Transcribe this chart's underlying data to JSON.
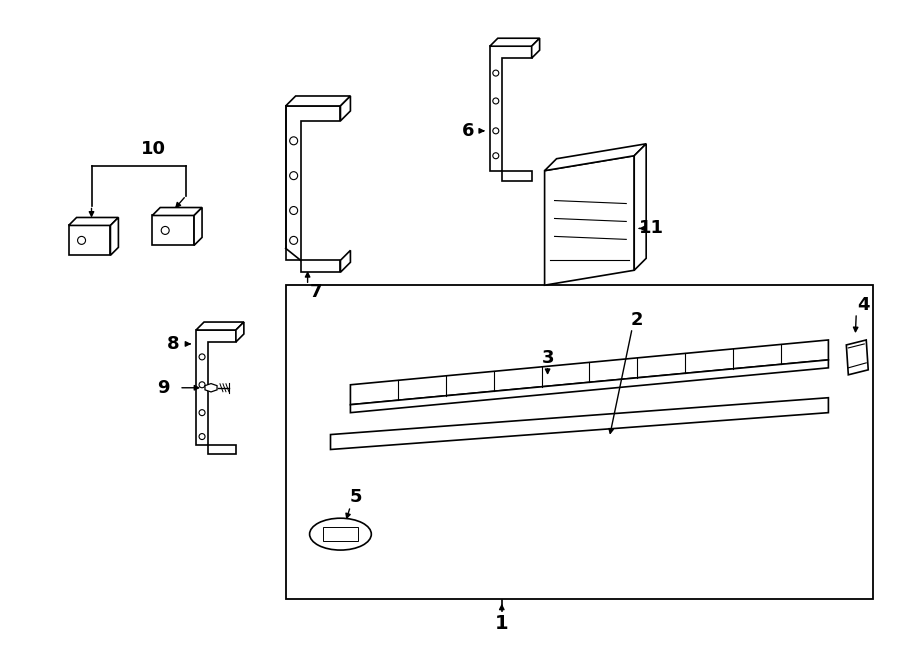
{
  "background_color": "#ffffff",
  "fig_width": 9.0,
  "fig_height": 6.61,
  "line_color": "#000000",
  "lw": 1.2
}
